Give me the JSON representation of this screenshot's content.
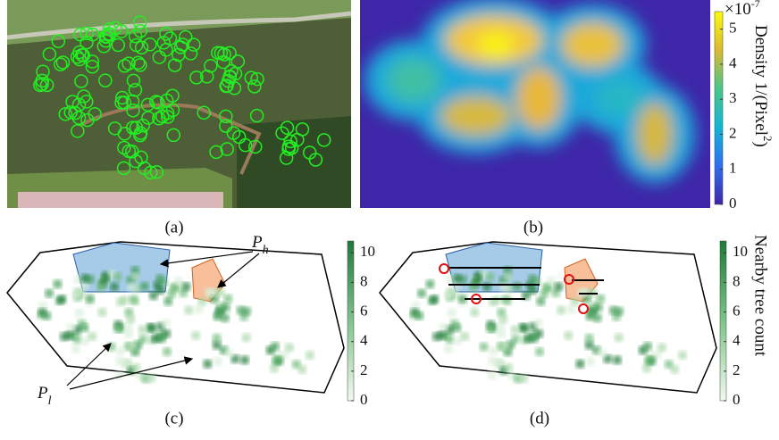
{
  "panels": [
    {
      "caption": "(a)"
    },
    {
      "caption": "(b)"
    },
    {
      "caption": "(c)"
    },
    {
      "caption": "(d)"
    }
  ],
  "colorbars": [
    {
      "lim": [
        0,
        5.5
      ],
      "ticks": [
        0,
        1,
        2,
        3,
        4,
        5
      ],
      "multiplier": "×10",
      "exponent": "-7",
      "label": "Density 1/(Pixel",
      "label_sup": "2",
      "label_end": ")"
    },
    {
      "lim": [
        0,
        10.8
      ],
      "ticks": [
        0,
        2,
        4,
        6,
        8,
        10
      ]
    },
    {
      "lim": [
        0,
        10.8
      ],
      "ticks": [
        0,
        2,
        4,
        6,
        8,
        10
      ],
      "label": "Nearby tree count"
    }
  ],
  "annotations": {
    "p_h": {
      "base": "P",
      "sub": "h"
    },
    "p_l": {
      "base": "P",
      "sub": "l"
    }
  }
}
